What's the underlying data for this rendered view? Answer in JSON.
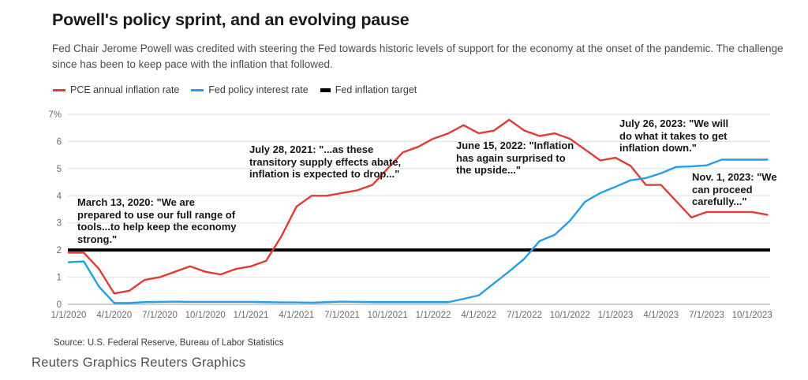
{
  "header": {
    "title": "Powell's policy sprint, and an evolving pause",
    "subtitle": "Fed Chair Jerome Powell was credited with steering the Fed towards historic levels of support for the economy at the onset of the pandemic. The challenge\nsince has been to keep pace with the inflation that followed."
  },
  "legend": [
    {
      "label": "PCE annual inflation rate",
      "color": "#e23b34"
    },
    {
      "label": "Fed policy interest rate",
      "color": "#259de8"
    },
    {
      "label": "Fed inflation target",
      "color": "#000000"
    }
  ],
  "chart_data": {
    "type": "line",
    "title": "Powell's policy sprint, and an evolving pause",
    "xlabel": "",
    "ylabel": "",
    "ylim": [
      0,
      7
    ],
    "grid": "horizontal",
    "legend_position": "top-left",
    "x": [
      "1/1/2020",
      "2/1/2020",
      "3/1/2020",
      "4/1/2020",
      "5/1/2020",
      "6/1/2020",
      "7/1/2020",
      "8/1/2020",
      "9/1/2020",
      "10/1/2020",
      "11/1/2020",
      "12/1/2020",
      "1/1/2021",
      "2/1/2021",
      "3/1/2021",
      "4/1/2021",
      "5/1/2021",
      "6/1/2021",
      "7/1/2021",
      "8/1/2021",
      "9/1/2021",
      "10/1/2021",
      "11/1/2021",
      "12/1/2021",
      "1/1/2022",
      "2/1/2022",
      "3/1/2022",
      "4/1/2022",
      "5/1/2022",
      "6/1/2022",
      "7/1/2022",
      "8/1/2022",
      "9/1/2022",
      "10/1/2022",
      "11/1/2022",
      "12/1/2022",
      "1/1/2023",
      "2/1/2023",
      "3/1/2023",
      "4/1/2023",
      "5/1/2023",
      "6/1/2023",
      "7/1/2023",
      "8/1/2023",
      "9/1/2023",
      "10/1/2023",
      "11/1/2023"
    ],
    "series": [
      {
        "id": "pce-inflation",
        "name": "PCE annual inflation rate",
        "color": "#e23b34",
        "width": 2.4,
        "values": [
          1.9,
          1.9,
          1.3,
          0.4,
          0.5,
          0.9,
          1.0,
          1.2,
          1.4,
          1.2,
          1.1,
          1.3,
          1.4,
          1.6,
          2.5,
          3.6,
          4.0,
          4.0,
          4.1,
          4.2,
          4.4,
          5.0,
          5.6,
          5.8,
          6.1,
          6.3,
          6.6,
          6.3,
          6.4,
          6.8,
          6.4,
          6.2,
          6.3,
          6.1,
          5.7,
          5.3,
          5.4,
          5.1,
          4.4,
          4.4,
          3.8,
          3.2,
          3.4,
          3.4,
          3.4,
          3.4,
          3.3
        ]
      },
      {
        "id": "fed-policy-rate",
        "name": "Fed policy interest rate",
        "color": "#259de8",
        "width": 2.4,
        "values": [
          1.55,
          1.58,
          0.65,
          0.05,
          0.05,
          0.08,
          0.09,
          0.1,
          0.09,
          0.09,
          0.09,
          0.09,
          0.09,
          0.08,
          0.07,
          0.07,
          0.06,
          0.08,
          0.1,
          0.09,
          0.08,
          0.08,
          0.08,
          0.08,
          0.08,
          0.08,
          0.2,
          0.33,
          0.77,
          1.21,
          1.68,
          2.33,
          2.56,
          3.08,
          3.78,
          4.1,
          4.33,
          4.57,
          4.65,
          4.83,
          5.06,
          5.08,
          5.12,
          5.33,
          5.33,
          5.33,
          5.33
        ]
      },
      {
        "id": "fed-inflation-target",
        "name": "Fed inflation target",
        "color": "#000000",
        "width": 4,
        "constant": 2
      }
    ],
    "yticks": [
      {
        "value": 7,
        "label": "7%"
      },
      {
        "value": 6,
        "label": "6"
      },
      {
        "value": 5,
        "label": "5"
      },
      {
        "value": 4,
        "label": "4"
      },
      {
        "value": 3,
        "label": "3"
      },
      {
        "value": 2,
        "label": "2"
      },
      {
        "value": 1,
        "label": "1"
      },
      {
        "value": 0,
        "label": "0"
      }
    ],
    "xticks": [
      {
        "index": 0,
        "label": "1/1/2020"
      },
      {
        "index": 3,
        "label": "4/1/2020"
      },
      {
        "index": 6,
        "label": "7/1/2020"
      },
      {
        "index": 9,
        "label": "10/1/2020"
      },
      {
        "index": 12,
        "label": "1/1/2021"
      },
      {
        "index": 15,
        "label": "4/1/2021"
      },
      {
        "index": 18,
        "label": "7/1/2021"
      },
      {
        "index": 21,
        "label": "10/1/2021"
      },
      {
        "index": 24,
        "label": "1/1/2022"
      },
      {
        "index": 27,
        "label": "4/1/2022"
      },
      {
        "index": 30,
        "label": "7/1/2022"
      },
      {
        "index": 33,
        "label": "10/1/2022"
      },
      {
        "index": 36,
        "label": "1/1/2023"
      },
      {
        "index": 39,
        "label": "4/1/2023"
      },
      {
        "index": 42,
        "label": "7/1/2023"
      },
      {
        "index": 45,
        "label": "10/1/2023"
      }
    ]
  },
  "annotations": [
    {
      "text": "March 13, 2020: \"We are\nprepared to use our full range of\ntools...to help keep the economy\nstrong.\""
    },
    {
      "text": "July 28, 2021: \"...as these\ntransitory supply effects abate,\ninflation is expected to drop...\""
    },
    {
      "text": "June 15, 2022: \"Inflation\nhas again surprised to\nthe upside...\""
    },
    {
      "text": "July 26, 2023: \"We will\ndo what it takes to get\ninflation down.\""
    },
    {
      "text": "Nov. 1, 2023: \"We\ncan proceed\ncarefully...\""
    }
  ],
  "footer": {
    "source": "Source: U.S. Federal Reserve, Bureau of Labor Statistics",
    "credit": "Reuters Graphics Reuters Graphics"
  }
}
